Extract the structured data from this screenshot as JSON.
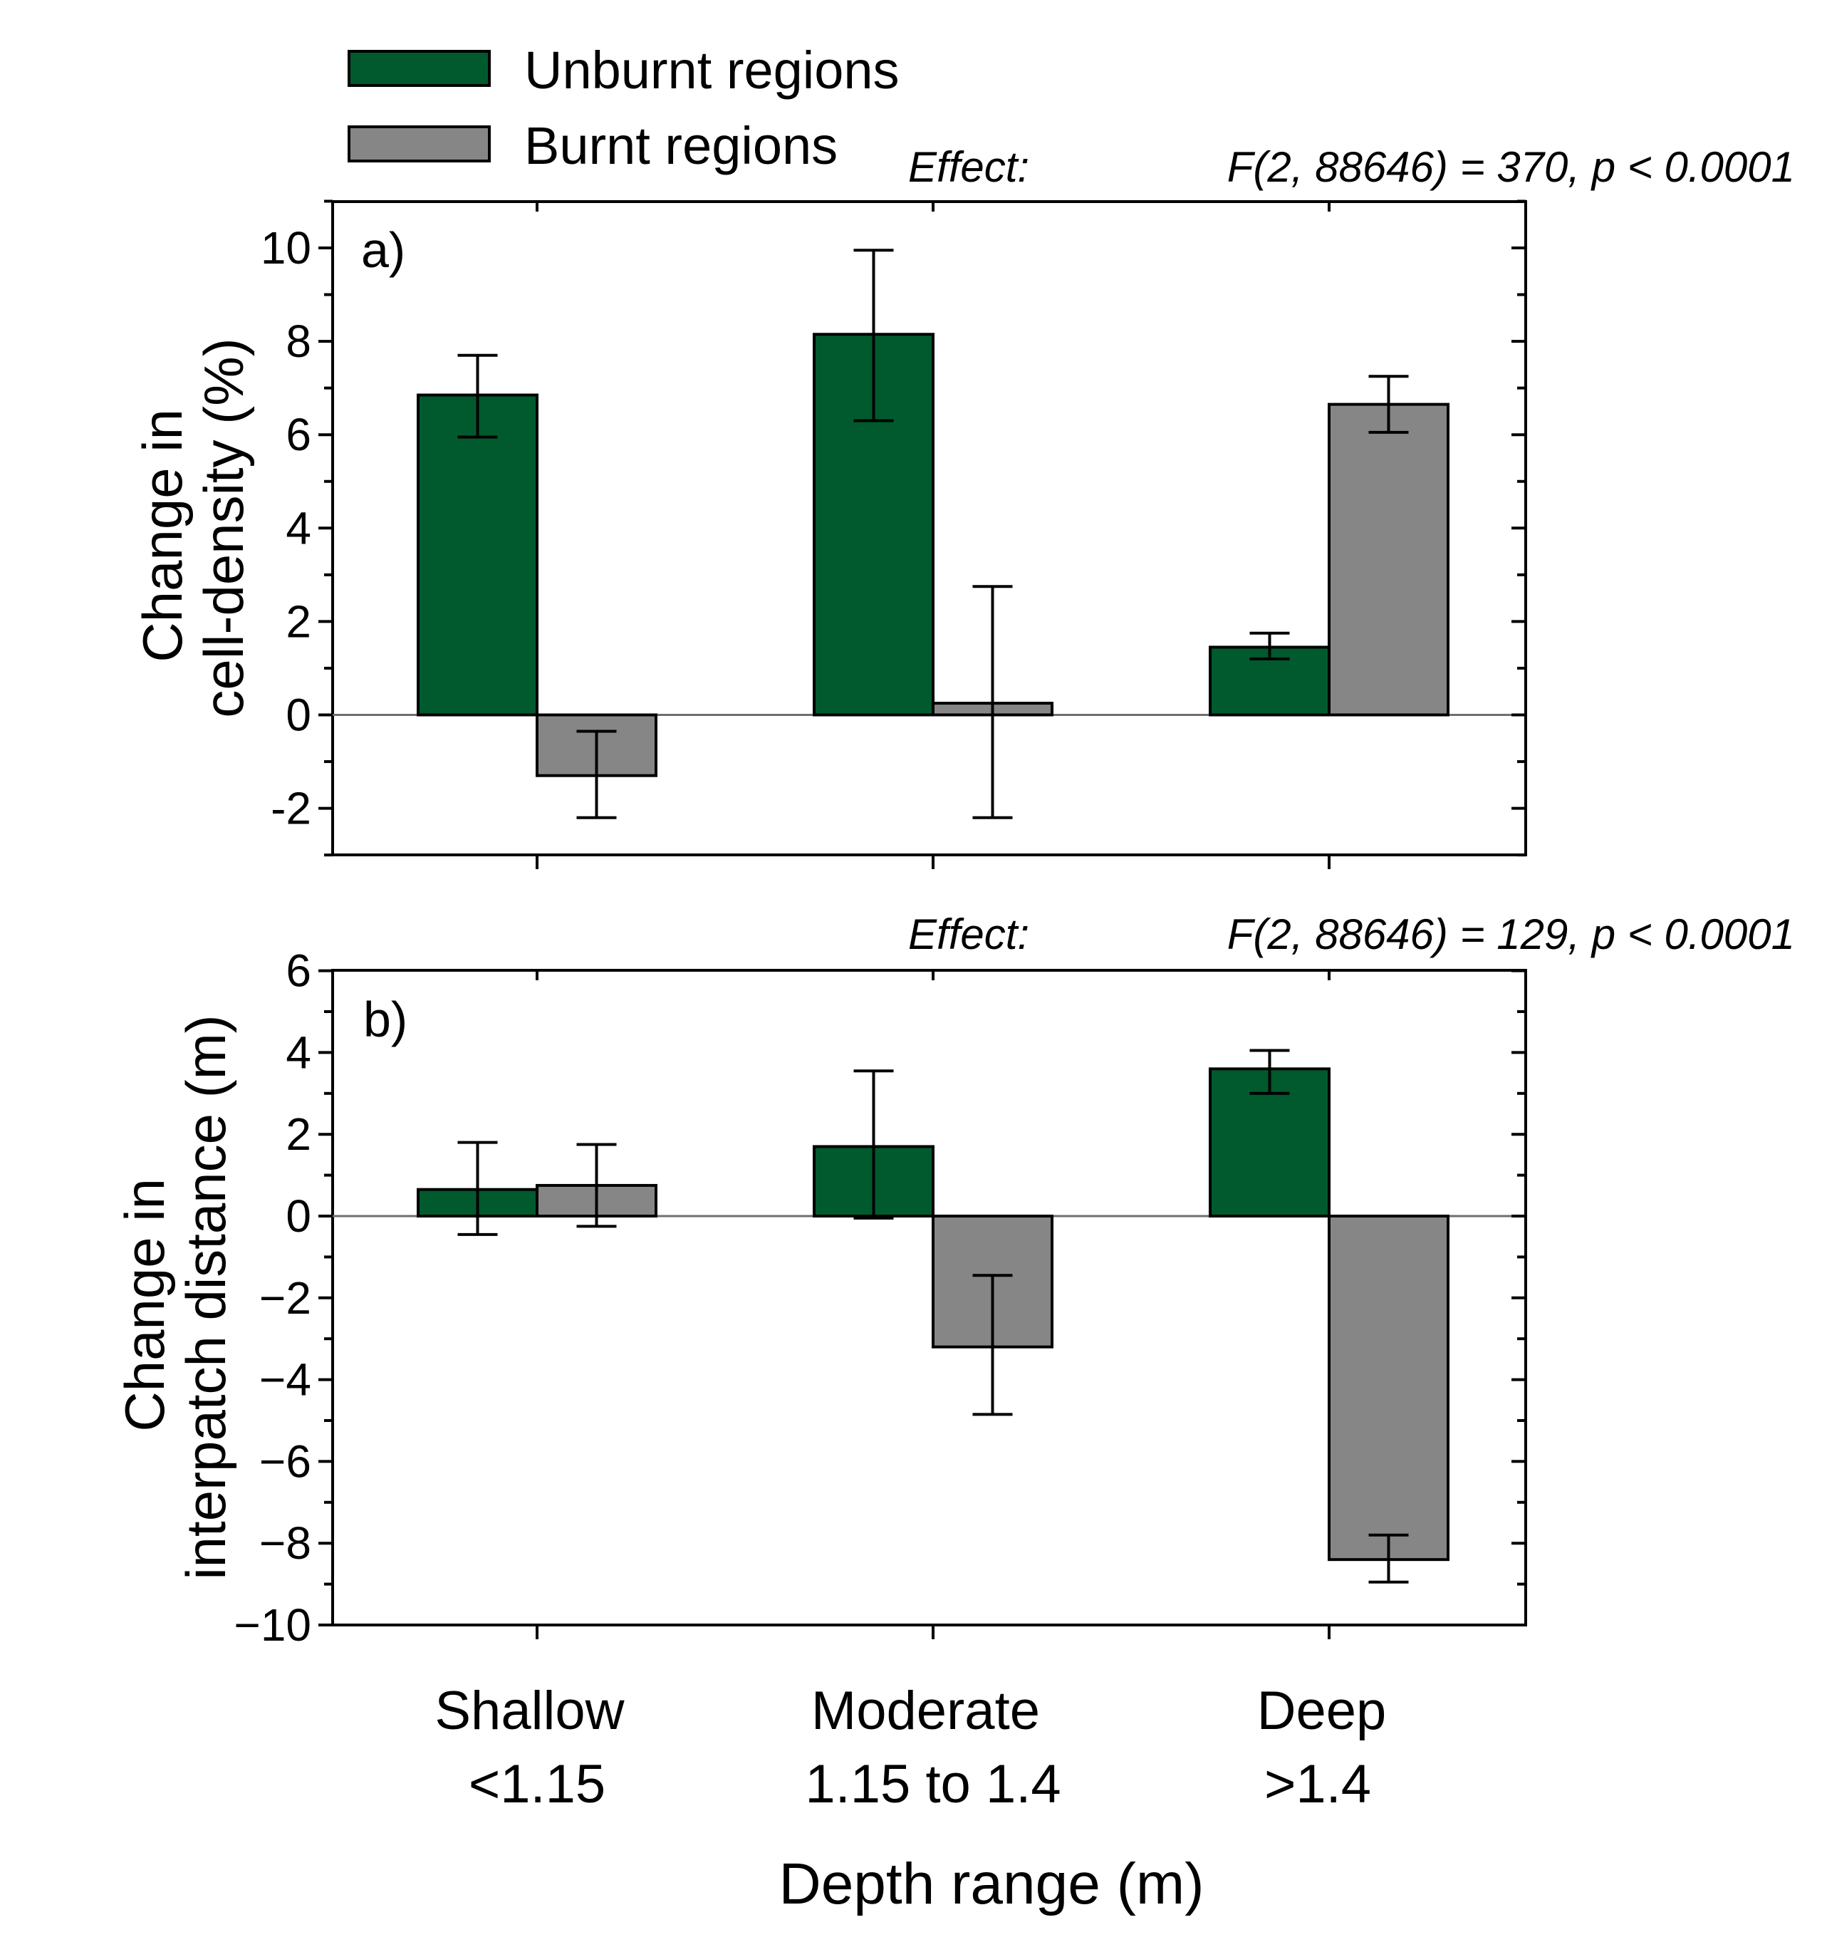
{
  "colors": {
    "unburnt": "#005a2d",
    "burnt": "#868686",
    "axis": "#000000",
    "zero_line": "#6e6e6e"
  },
  "legend": {
    "unburnt_label": "Unburnt regions",
    "burnt_label": "Burnt regions",
    "placement": "top-left"
  },
  "xaxis": {
    "label": "Depth range (m)",
    "categories": [
      {
        "name": "Shallow",
        "range": "<1.15"
      },
      {
        "name": "Moderate",
        "range": "1.15 to 1.4"
      },
      {
        "name": "Deep",
        "range": ">1.4"
      }
    ]
  },
  "chart_data": [
    {
      "type": "bar",
      "panel_label": "a)",
      "effect_label": "Effect:",
      "effect_text": "F(2, 88646) = 370, p < 0.0001",
      "ylabel": [
        "Change in",
        "cell-density (%)"
      ],
      "ylim": [
        -3,
        11
      ],
      "yticks": [
        -2,
        0,
        2,
        4,
        6,
        8,
        10
      ],
      "ytick_labels": [
        "-2",
        "0",
        "2",
        "4",
        "6",
        "8",
        "10"
      ],
      "categories": [
        "Shallow <1.15",
        "Moderate 1.15 to 1.4",
        "Deep >1.4"
      ],
      "series": [
        {
          "name": "Unburnt regions",
          "values": [
            6.85,
            8.15,
            1.45
          ],
          "err_low": [
            5.95,
            6.3,
            1.2
          ],
          "err_high": [
            7.7,
            9.95,
            1.75
          ]
        },
        {
          "name": "Burnt regions",
          "values": [
            -1.3,
            0.25,
            6.65
          ],
          "err_low": [
            -2.2,
            -2.2,
            6.05
          ],
          "err_high": [
            -0.35,
            2.75,
            7.25
          ]
        }
      ]
    },
    {
      "type": "bar",
      "panel_label": "b)",
      "effect_label": "Effect:",
      "effect_text": "F(2, 88646) = 129, p < 0.0001",
      "ylabel": [
        "Change in",
        "interpatch distance (m)"
      ],
      "ylim": [
        -10,
        6
      ],
      "yticks": [
        -10,
        -8,
        -6,
        -4,
        -2,
        0,
        2,
        4,
        6
      ],
      "ytick_labels": [
        "−10",
        "−8",
        "−6",
        "−4",
        "−2",
        "0",
        "2",
        "4",
        "6"
      ],
      "categories": [
        "Shallow <1.15",
        "Moderate 1.15 to 1.4",
        "Deep >1.4"
      ],
      "series": [
        {
          "name": "Unburnt regions",
          "values": [
            0.65,
            1.7,
            3.6
          ],
          "err_low": [
            -0.45,
            -0.05,
            3.0
          ],
          "err_high": [
            1.8,
            3.55,
            4.05
          ]
        },
        {
          "name": "Burnt regions",
          "values": [
            0.75,
            -3.2,
            -8.4
          ],
          "err_low": [
            -0.25,
            -4.85,
            -8.95
          ],
          "err_high": [
            1.75,
            -1.45,
            -7.8
          ]
        }
      ]
    }
  ]
}
